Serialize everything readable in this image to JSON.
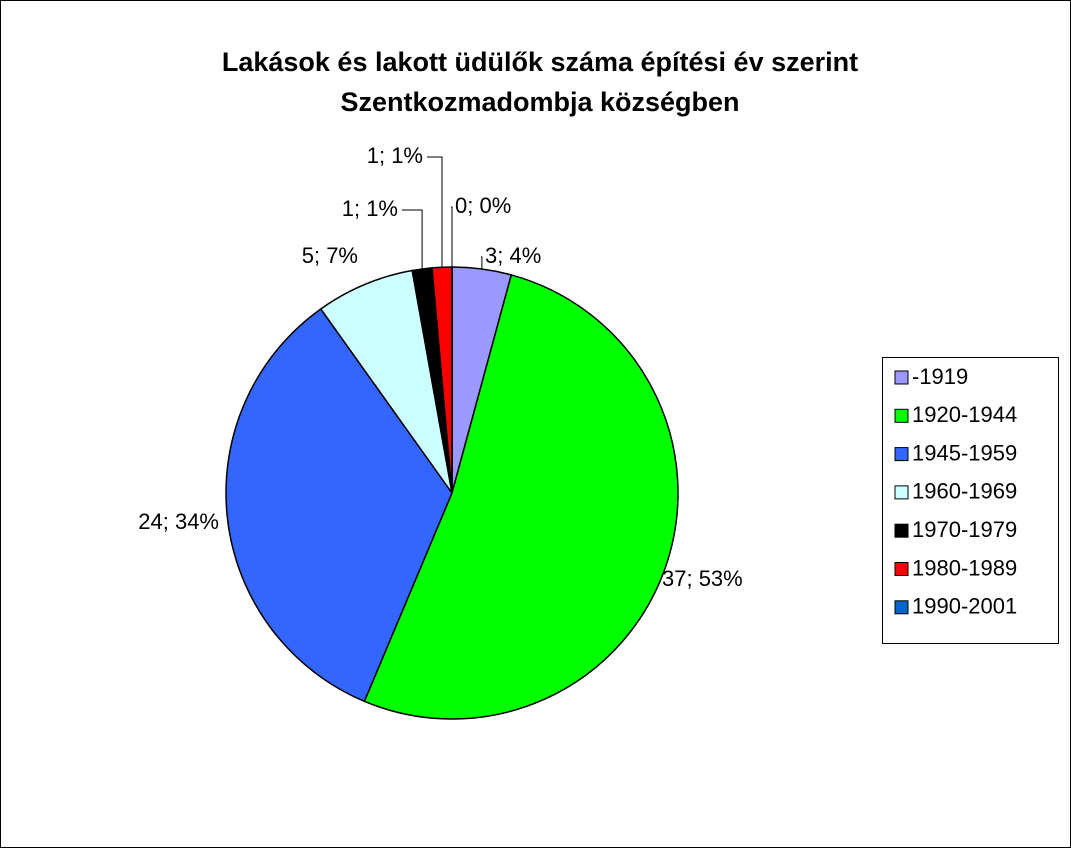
{
  "chart_data": {
    "type": "pie",
    "title": [
      "Lakások és lakott üdülők száma építési év szerint",
      "Szentkozmadombja községben"
    ],
    "categories": [
      "-1919",
      "1920-1944",
      "1945-1959",
      "1960-1969",
      "1970-1979",
      "1980-1989",
      "1990-2001"
    ],
    "values": [
      3,
      37,
      24,
      5,
      1,
      1,
      0
    ],
    "value_labels": [
      "3; 4%",
      "37; 53%",
      "24; 34%",
      "5; 7%",
      "1; 1%",
      "1; 1%",
      "0; 0%"
    ],
    "colors": [
      "#9999ff",
      "#00ff00",
      "#3366ff",
      "#ccffff",
      "#000000",
      "#ff0000",
      "#0066cc"
    ],
    "legend": "right"
  }
}
